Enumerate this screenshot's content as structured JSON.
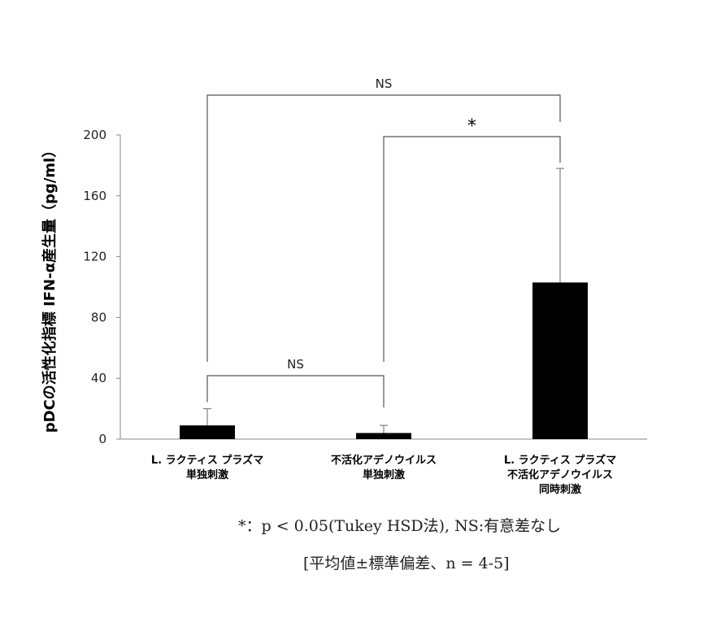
{
  "chart_data": {
    "type": "bar",
    "ylabel": "pDCの活性化指標 IFN-α産生量（pg/ml）",
    "ylim": [
      0,
      200
    ],
    "yticks": [
      "0",
      "40",
      "80",
      "120",
      "160",
      "200"
    ],
    "categories": [
      [
        "L. ラクティス プラズマ",
        "単独刺激"
      ],
      [
        "不活化アデノウイルス",
        "単独刺激"
      ],
      [
        "L. ラクティス プラズマ",
        "不活化アデノウイルス",
        "同時刺激"
      ]
    ],
    "values": [
      9,
      4,
      103
    ],
    "errors": [
      11,
      5,
      75
    ],
    "bar_color": "#000000",
    "significance": [
      {
        "from": 0,
        "to": 1,
        "label": "NS"
      },
      {
        "from": 1,
        "to": 2,
        "label": "*"
      },
      {
        "from": 0,
        "to": 2,
        "label": "NS"
      }
    ]
  },
  "footnote": {
    "line1": "*：p < 0.05(Tukey HSD法), NS:有意差なし",
    "line2": "[平均値±標準偏差、n = 4-5]"
  }
}
